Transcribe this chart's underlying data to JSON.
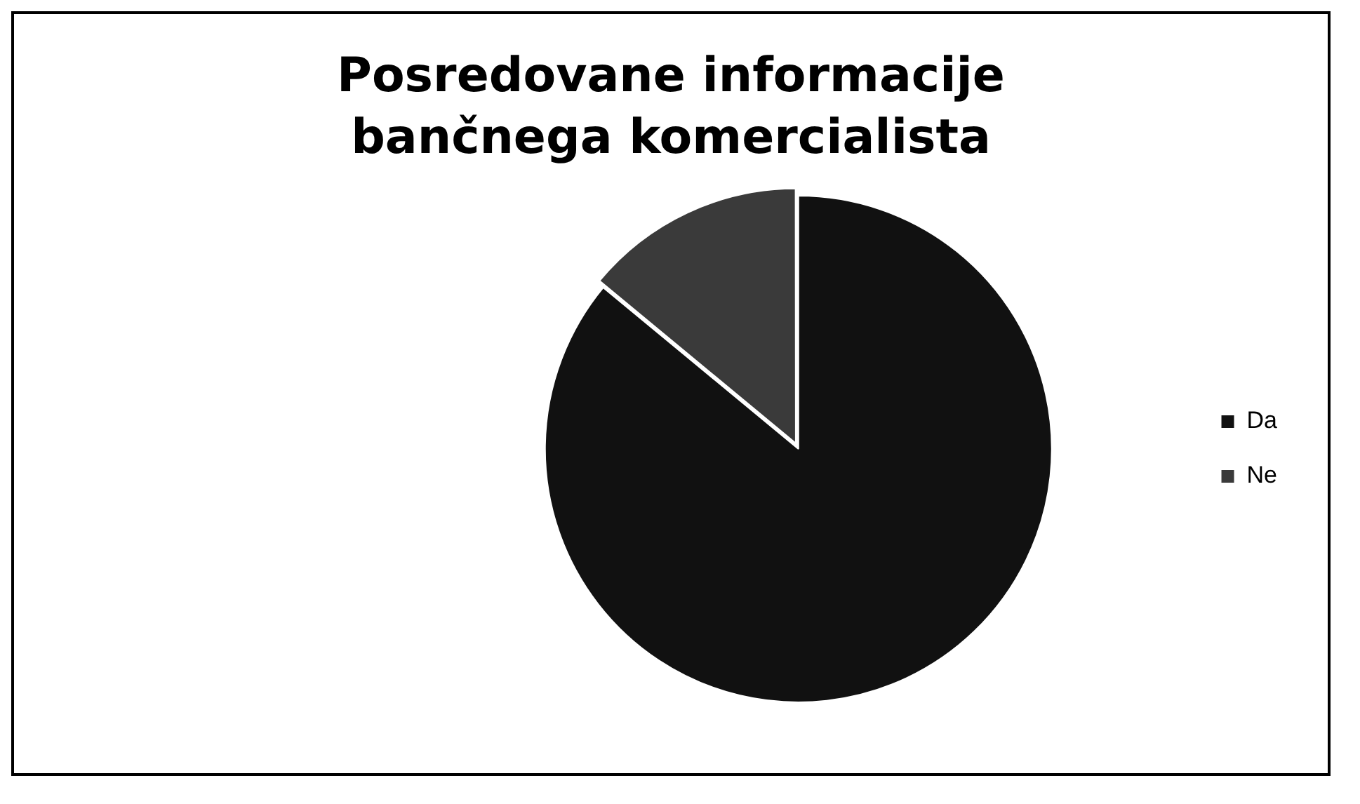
{
  "chart_data": {
    "type": "pie",
    "title": "Posredovane informacije bančnega komercialista",
    "categories": [
      "Da",
      "Ne"
    ],
    "values": [
      86,
      14
    ],
    "colors": [
      "#111111",
      "#3a3a3a"
    ],
    "legend": "right"
  }
}
